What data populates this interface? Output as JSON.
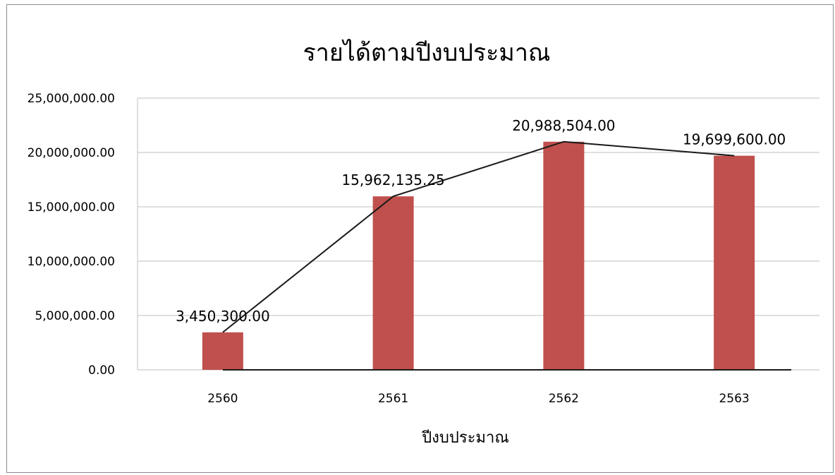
{
  "chart_data": {
    "type": "bar",
    "title": "รายได้ตามปีงบประมาณ",
    "xlabel": "ปีงบประมาณ",
    "ylabel": "",
    "categories": [
      "2560",
      "2561",
      "2562",
      "2563"
    ],
    "series": [
      {
        "values": [
          3450300.0,
          15962135.25,
          20988504.0,
          19699600.0
        ],
        "labels": [
          "3,450,300.00",
          "15,962,135.25",
          "20,988,504.00",
          "19,699,600.00"
        ],
        "color": "#c0504d"
      }
    ],
    "overlay_line": {
      "values": [
        3450300.0,
        15962135.25,
        20988504.0,
        19699600.0
      ],
      "color": "#1a1a1a"
    },
    "ylim": [
      0,
      25000000
    ],
    "yticks": [
      0,
      5000000,
      10000000,
      15000000,
      20000000,
      25000000
    ],
    "ytick_labels": [
      "0.00",
      "5,000,000.00",
      "10,000,000.00",
      "15,000,000.00",
      "20,000,000.00",
      "25,000,000.00"
    ],
    "grid": true,
    "legend": "none",
    "gridline_color": "#bfbfbf"
  }
}
